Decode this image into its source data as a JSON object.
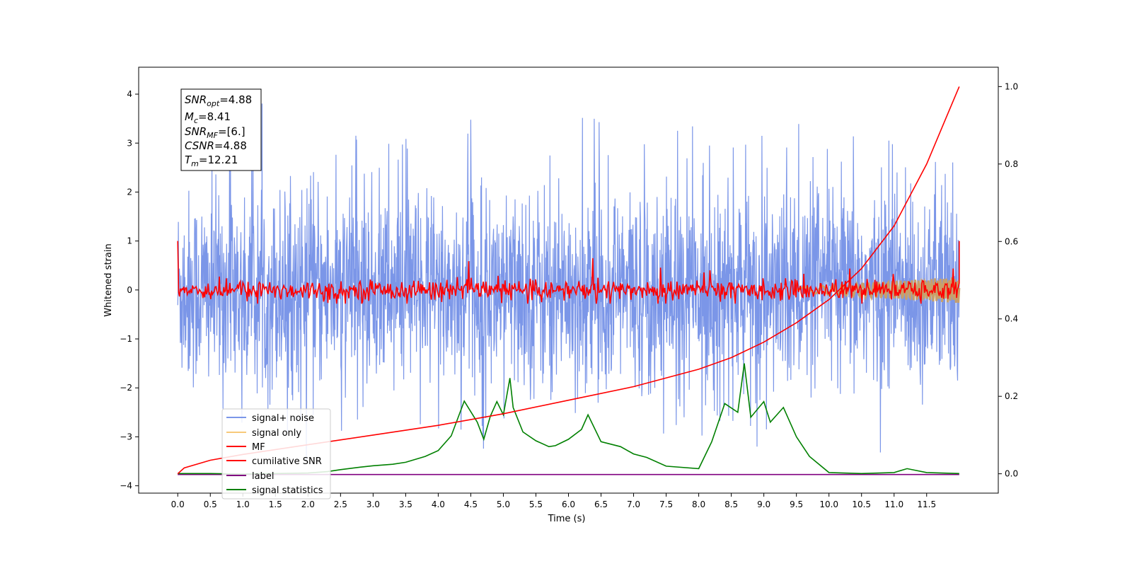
{
  "chart_data": {
    "type": "line",
    "xlabel": "Time (s)",
    "ylabel": "Whitened strain",
    "xlim": [
      -0.6,
      12.6
    ],
    "ylim": [
      -4.15,
      4.55
    ],
    "y2lim": [
      -0.05,
      1.05
    ],
    "x_ticks": [
      "0.0",
      "0.5",
      "1.0",
      "1.5",
      "2.0",
      "2.5",
      "3.0",
      "3.5",
      "4.0",
      "4.5",
      "5.0",
      "5.5",
      "6.0",
      "6.5",
      "7.0",
      "7.5",
      "8.0",
      "8.5",
      "9.0",
      "9.5",
      "10.0",
      "10.5",
      "11.0",
      "11.5"
    ],
    "y_ticks": [
      "4",
      "3",
      "2",
      "1",
      "0",
      "−1",
      "−2",
      "−3",
      "−4"
    ],
    "y2_ticks": [
      "1.0",
      "0.8",
      "0.6",
      "0.4",
      "0.2",
      "0.0"
    ],
    "annotation": [
      {
        "sym": "SNR",
        "sub": "opt",
        "value": "=4.88"
      },
      {
        "sym": "M",
        "sub": "c",
        "value": "=8.41"
      },
      {
        "sym": "SNR",
        "sub": "MF",
        "value": "=[6.]"
      },
      {
        "sym": "CSNR",
        "sub": "",
        "value": "=4.88"
      },
      {
        "sym": "T",
        "sub": "m",
        "value": "=12.21"
      }
    ],
    "legend": [
      "signal+ noise",
      "signal only",
      "MF",
      "cumilative SNR",
      "label",
      "signal statistics"
    ],
    "legend_position": "lower-left",
    "colors": {
      "signal_noise": "#7b96e8",
      "signal_only": "#f7c97a",
      "mf": "#ff0000",
      "cumulative": "#ff0000",
      "label": "#800080",
      "statistics": "#008000"
    },
    "series": [
      {
        "name": "signal+ noise",
        "axis": "left",
        "description": "dense noise trace, roughly Gaussian with std ~1, spanning x 0 to 12",
        "x_range": [
          0,
          12
        ],
        "envelope": [
          -3.75,
          4.17
        ]
      },
      {
        "name": "MF",
        "axis": "left",
        "x_range": [
          0,
          12
        ],
        "envelope": [
          -0.28,
          1.0
        ]
      },
      {
        "name": "cumilative SNR",
        "axis": "right",
        "x": [
          0.0,
          0.1,
          0.5,
          1.0,
          2.0,
          3.0,
          4.0,
          5.0,
          6.0,
          7.0,
          8.0,
          8.5,
          9.0,
          9.5,
          10.0,
          10.5,
          11.0,
          11.5,
          11.8,
          12.0
        ],
        "values": [
          0.0,
          0.015,
          0.035,
          0.05,
          0.075,
          0.1,
          0.125,
          0.155,
          0.19,
          0.225,
          0.27,
          0.3,
          0.34,
          0.39,
          0.45,
          0.53,
          0.64,
          0.8,
          0.92,
          1.0
        ]
      },
      {
        "name": "label",
        "axis": "left",
        "x": [
          0,
          12
        ],
        "values": [
          -3.77,
          -3.77
        ]
      },
      {
        "name": "signal statistics",
        "axis": "left",
        "x": [
          0.0,
          0.5,
          1.0,
          1.5,
          2.0,
          2.3,
          2.5,
          2.8,
          3.0,
          3.3,
          3.5,
          3.8,
          4.0,
          4.2,
          4.4,
          4.6,
          4.7,
          4.8,
          4.9,
          5.0,
          5.1,
          5.15,
          5.3,
          5.5,
          5.7,
          5.8,
          6.0,
          6.2,
          6.3,
          6.5,
          6.8,
          7.0,
          7.2,
          7.5,
          8.0,
          8.2,
          8.4,
          8.6,
          8.7,
          8.8,
          9.0,
          9.1,
          9.3,
          9.5,
          9.7,
          10.0,
          10.5,
          11.0,
          11.2,
          11.5,
          12.0
        ],
        "values": [
          -3.75,
          -3.75,
          -3.76,
          -3.75,
          -3.74,
          -3.71,
          -3.67,
          -3.62,
          -3.59,
          -3.56,
          -3.52,
          -3.4,
          -3.28,
          -2.98,
          -2.27,
          -2.7,
          -3.05,
          -2.58,
          -2.28,
          -2.55,
          -1.8,
          -2.4,
          -2.9,
          -3.08,
          -3.2,
          -3.18,
          -3.05,
          -2.85,
          -2.55,
          -3.1,
          -3.2,
          -3.35,
          -3.42,
          -3.6,
          -3.65,
          -3.1,
          -2.32,
          -2.5,
          -1.5,
          -2.6,
          -2.28,
          -2.7,
          -2.4,
          -3.0,
          -3.4,
          -3.73,
          -3.75,
          -3.73,
          -3.65,
          -3.73,
          -3.75
        ]
      }
    ]
  }
}
